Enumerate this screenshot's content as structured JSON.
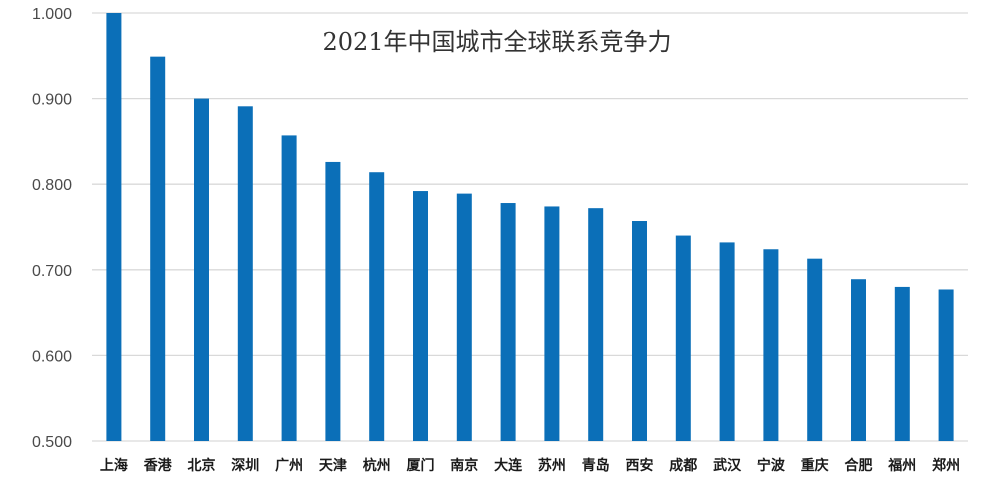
{
  "chart_data": {
    "type": "bar",
    "title": "2021年中国城市全球联系竞争力",
    "xlabel": "",
    "ylabel": "",
    "ylim": [
      0.5,
      1.0
    ],
    "yticks": [
      "0.500",
      "0.600",
      "0.700",
      "0.800",
      "0.900",
      "1.000"
    ],
    "grid": true,
    "categories": [
      "上海",
      "香港",
      "北京",
      "深圳",
      "广州",
      "天津",
      "杭州",
      "厦门",
      "南京",
      "大连",
      "苏州",
      "青岛",
      "西安",
      "成都",
      "武汉",
      "宁波",
      "重庆",
      "合肥",
      "福州",
      "郑州"
    ],
    "values": [
      1.0,
      0.949,
      0.9,
      0.891,
      0.857,
      0.826,
      0.814,
      0.792,
      0.789,
      0.778,
      0.774,
      0.772,
      0.757,
      0.74,
      0.732,
      0.724,
      0.713,
      0.689,
      0.68,
      0.677
    ],
    "bar_color": "#0b6fb8",
    "grid_color": "#d9d9d9"
  }
}
